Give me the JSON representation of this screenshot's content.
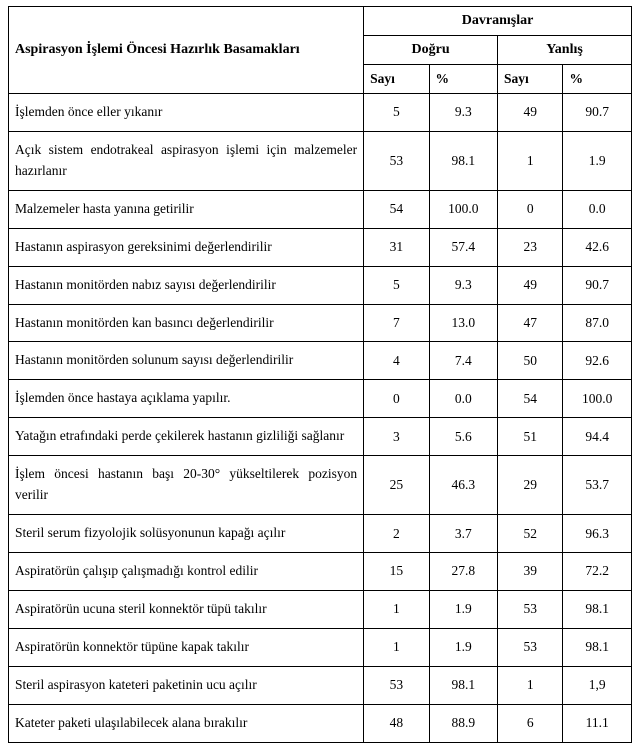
{
  "headers": {
    "steps_title": "Aspirasyon İşlemi Öncesi Hazırlık Basamakları",
    "behaviors": "Davranışlar",
    "correct": "Doğru",
    "wrong": "Yanlış",
    "count": "Sayı",
    "percent": "%"
  },
  "rows": [
    {
      "label": "İşlemden önce eller yıkanır",
      "cn": "5",
      "cp": "9.3",
      "wn": "49",
      "wp": "90.7"
    },
    {
      "label": " Açık sistem endotrakeal aspirasyon işlemi için malzemeler hazırlanır",
      "cn": "53",
      "cp": "98.1",
      "wn": "1",
      "wp": "1.9"
    },
    {
      "label": "Malzemeler hasta yanına getirilir",
      "cn": "54",
      "cp": "100.0",
      "wn": "0",
      "wp": "0.0"
    },
    {
      "label": "Hastanın aspirasyon gereksinimi değerlendirilir",
      "cn": "31",
      "cp": "57.4",
      "wn": "23",
      "wp": "42.6"
    },
    {
      "label": "Hastanın monitörden nabız sayısı değerlendirilir",
      "cn": "5",
      "cp": "9.3",
      "wn": "49",
      "wp": "90.7"
    },
    {
      "label": "Hastanın monitörden kan basıncı değerlendirilir",
      "cn": "7",
      "cp": "13.0",
      "wn": "47",
      "wp": "87.0"
    },
    {
      "label": "Hastanın monitörden solunum sayısı değerlendirilir",
      "cn": "4",
      "cp": "7.4",
      "wn": "50",
      "wp": "92.6"
    },
    {
      "label": "İşlemden önce hastaya açıklama yapılır.",
      "cn": "0",
      "cp": "0.0",
      "wn": "54",
      "wp": "100.0"
    },
    {
      "label": "Yatağın etrafındaki perde çekilerek hastanın gizliliği sağlanır",
      "cn": "3",
      "cp": "5.6",
      "wn": "51",
      "wp": "94.4"
    },
    {
      "label": "İşlem öncesi hastanın başı 20-30° yükseltilerek pozisyon verilir",
      "cn": "25",
      "cp": "46.3",
      "wn": "29",
      "wp": "53.7"
    },
    {
      "label": "Steril serum fizyolojik solüsyonunun kapağı açılır",
      "cn": "2",
      "cp": "3.7",
      "wn": "52",
      "wp": "96.3"
    },
    {
      "label": "Aspiratörün çalışıp çalışmadığı kontrol edilir",
      "cn": "15",
      "cp": "27.8",
      "wn": "39",
      "wp": "72.2"
    },
    {
      "label": "Aspiratörün ucuna steril konnektör tüpü takılır",
      "cn": "1",
      "cp": "1.9",
      "wn": "53",
      "wp": "98.1"
    },
    {
      "label": "Aspiratörün konnektör tüpüne kapak takılır",
      "cn": "1",
      "cp": "1.9",
      "wn": "53",
      "wp": "98.1"
    },
    {
      "label": "Steril aspirasyon kateteri paketinin ucu açılır",
      "cn": "53",
      "cp": "98.1",
      "wn": "1",
      "wp": "1,9"
    },
    {
      "label": "Kateter paketi ulaşılabilecek alana bırakılır",
      "cn": "48",
      "cp": "88.9",
      "wn": "6",
      "wp": "11.1"
    }
  ],
  "style": {
    "columns": [
      "desc",
      "correct_n",
      "correct_pct",
      "wrong_n",
      "wrong_pct"
    ],
    "col_widths_pct": [
      57,
      10.5,
      11,
      10.5,
      11
    ],
    "font_family": "Times New Roman",
    "header_fontsize_pt": 11,
    "body_fontsize_pt": 10,
    "border_color": "#000000",
    "background_color": "#ffffff",
    "text_color": "#000000",
    "desc_align": "justify",
    "num_align": "center"
  }
}
